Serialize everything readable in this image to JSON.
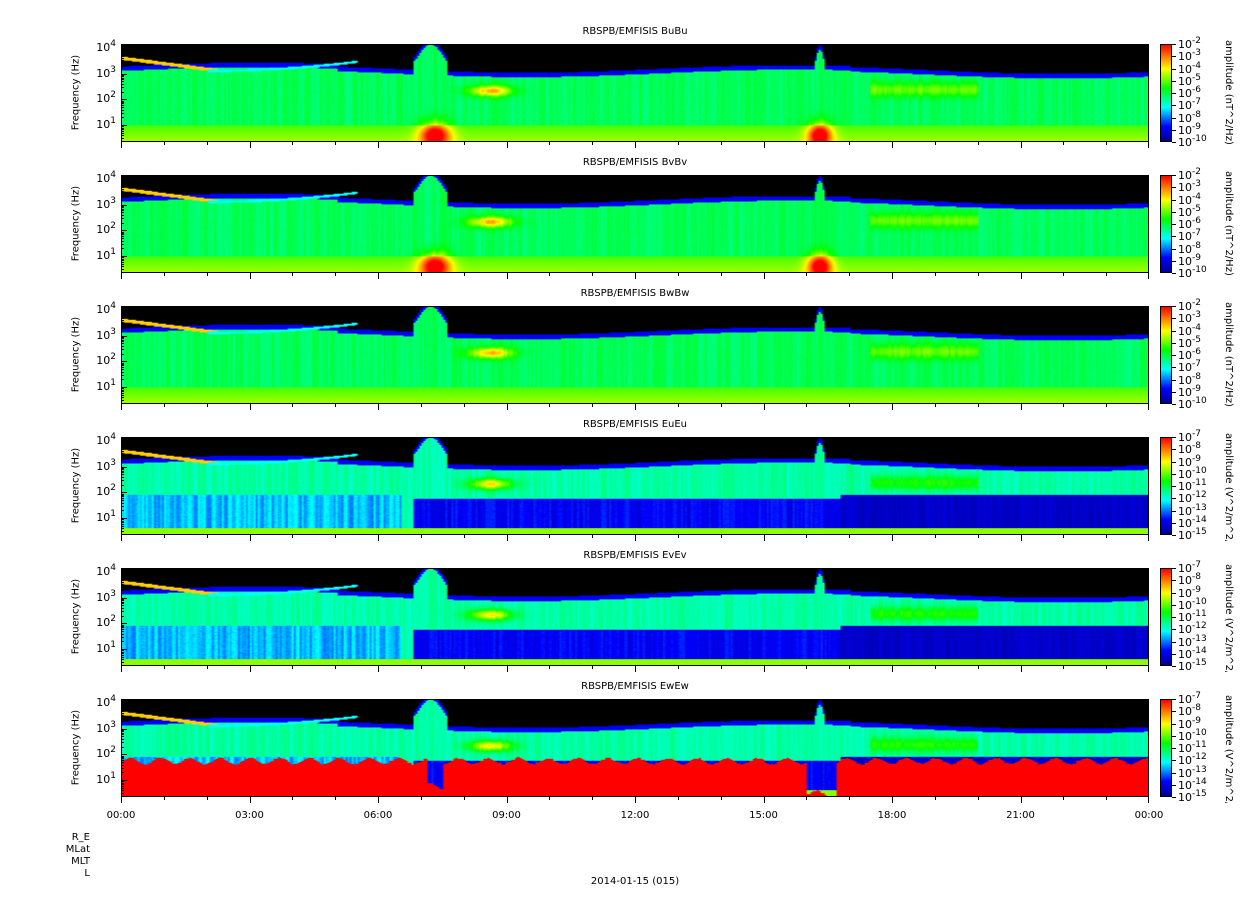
{
  "chart_data": {
    "type": "heatmap",
    "x_ticks": [
      "00:00",
      "03:00",
      "06:00",
      "09:00",
      "12:00",
      "15:00",
      "18:00",
      "21:00",
      "00:00"
    ],
    "x_range_hours": [
      0,
      24
    ],
    "date_label": "2014-01-15 (015)",
    "ephemeris_labels": [
      "R_E",
      "MLat",
      "MLT",
      "L"
    ],
    "panels": [
      {
        "title": "RBSPB/EMFISIS  BuBu",
        "kind": "Bu",
        "ylabel": "Frequency (Hz)",
        "yticks": [
          "4",
          "3",
          "2",
          "1"
        ],
        "ylim_log10": [
          0.34,
          4.16
        ],
        "clabel": "amplitude (nT^2/Hz)",
        "cticks": [
          "-2",
          "-3",
          "-4",
          "-5",
          "-6",
          "-7",
          "-8",
          "-9",
          "-10"
        ]
      },
      {
        "title": "RBSPB/EMFISIS  BvBv",
        "kind": "Bv",
        "ylabel": "Frequency (Hz)",
        "yticks": [
          "4",
          "3",
          "2",
          "1"
        ],
        "ylim_log10": [
          0.34,
          4.16
        ],
        "clabel": "amplitude (nT^2/Hz)",
        "cticks": [
          "-2",
          "-3",
          "-4",
          "-5",
          "-6",
          "-7",
          "-8",
          "-9",
          "-10"
        ]
      },
      {
        "title": "RBSPB/EMFISIS  BwBw",
        "kind": "Bw",
        "ylabel": "Frequency (Hz)",
        "yticks": [
          "4",
          "3",
          "2",
          "1"
        ],
        "ylim_log10": [
          0.34,
          4.16
        ],
        "clabel": "amplitude (nT^2/Hz)",
        "cticks": [
          "-2",
          "-3",
          "-4",
          "-5",
          "-6",
          "-7",
          "-8",
          "-9",
          "-10"
        ]
      },
      {
        "title": "RBSPB/EMFISIS  EuEu",
        "kind": "Eu",
        "ylabel": "Frequency (Hz)",
        "yticks": [
          "4",
          "3",
          "2",
          "1"
        ],
        "ylim_log10": [
          0.34,
          4.16
        ],
        "clabel": "amplitude (V^2/m^2/Hz)",
        "cticks": [
          "-7",
          "-8",
          "-9",
          "-10",
          "-11",
          "-12",
          "-13",
          "-14",
          "-15"
        ]
      },
      {
        "title": "RBSPB/EMFISIS  EvEv",
        "kind": "Ev",
        "ylabel": "Frequency (Hz)",
        "yticks": [
          "4",
          "3",
          "2",
          "1"
        ],
        "ylim_log10": [
          0.34,
          4.16
        ],
        "clabel": "amplitude (V^2/m^2/Hz)",
        "cticks": [
          "-7",
          "-8",
          "-9",
          "-10",
          "-11",
          "-12",
          "-13",
          "-14",
          "-15"
        ]
      },
      {
        "title": "RBSPB/EMFISIS  EwEw",
        "kind": "Ew",
        "ylabel": "Frequency (Hz)",
        "yticks": [
          "4",
          "3",
          "2",
          "1"
        ],
        "ylim_log10": [
          0.34,
          4.16
        ],
        "clabel": "amplitude (V^2/m^2/Hz)",
        "cticks": [
          "-7",
          "-8",
          "-9",
          "-10",
          "-11",
          "-12",
          "-13",
          "-14",
          "-15"
        ]
      }
    ],
    "colormap": [
      "#00008c",
      "#0000ff",
      "#00ffff",
      "#00ff00",
      "#ffff00",
      "#ff0000"
    ]
  }
}
